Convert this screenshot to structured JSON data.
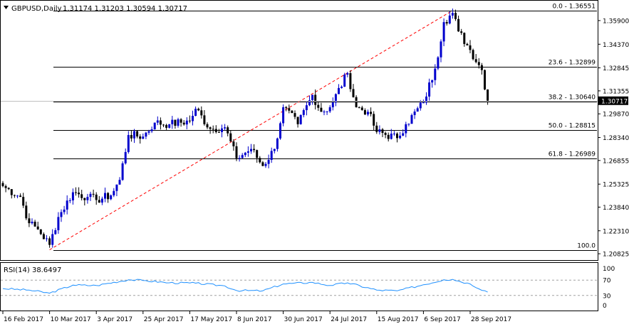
{
  "header": {
    "symbol_label": "GBPUSD,Daily",
    "ohlc": "1.31174 1.31203 1.30594 1.30717",
    "marker_icon": "triangle-down-icon"
  },
  "rsi_panel": {
    "label": "RSI(14) 38.6497",
    "levels": [
      70,
      30
    ],
    "ticks": [
      "100",
      "70",
      "30",
      "0"
    ],
    "line_color": "#1e90ff"
  },
  "colors": {
    "bull_candle": "#0000cd",
    "bear_candle": "#000000",
    "current_price_bg": "#000000",
    "trend_line": "#ff0000"
  },
  "chart_data": {
    "type": "candlestick",
    "symbol": "GBPUSD",
    "timeframe": "Daily",
    "last_price": "1.30717",
    "y_ticks": [
      "1.35900",
      "1.34370",
      "1.32845",
      "1.31355",
      "1.29870",
      "1.28340",
      "1.26855",
      "1.25325",
      "1.23840",
      "1.22310",
      "1.20825"
    ],
    "ylim": [
      1.206,
      1.37
    ],
    "x_ticks": [
      "16 Feb 2017",
      "10 Mar 2017",
      "3 Apr 2017",
      "25 Apr 2017",
      "17 May 2017",
      "8 Jun 2017",
      "30 Jun 2017",
      "24 Jul 2017",
      "15 Aug 2017",
      "6 Sep 2017",
      "28 Sep 2017"
    ],
    "fibonacci": [
      {
        "label": "0.0 - 1.36551",
        "price": 1.36551
      },
      {
        "label": "23.6 - 1.32899",
        "price": 1.32899
      },
      {
        "label": "38.2 - 1.30640",
        "price": 1.3064
      },
      {
        "label": "50.0 - 1.28815",
        "price": 1.28815
      },
      {
        "label": "61.8 - 1.26989",
        "price": 1.26989
      },
      {
        "label": "100.0",
        "price": 1.2108
      }
    ],
    "anchors": [
      {
        "date": "16 Feb 2017",
        "close": 1.252
      },
      {
        "date": "24 Feb 2017",
        "close": 1.245
      },
      {
        "date": "1 Mar 2017",
        "close": 1.228
      },
      {
        "date": "6 Mar 2017",
        "close": 1.224
      },
      {
        "date": "10 Mar 2017",
        "close": 1.214
      },
      {
        "date": "15 Mar 2017",
        "close": 1.232
      },
      {
        "date": "22 Mar 2017",
        "close": 1.248
      },
      {
        "date": "29 Mar 2017",
        "close": 1.245
      },
      {
        "date": "3 Apr 2017",
        "close": 1.243
      },
      {
        "date": "10 Apr 2017",
        "close": 1.246
      },
      {
        "date": "13 Apr 2017",
        "close": 1.256
      },
      {
        "date": "18 Apr 2017",
        "close": 1.285
      },
      {
        "date": "25 Apr 2017",
        "close": 1.284
      },
      {
        "date": "1 May 2017",
        "close": 1.293
      },
      {
        "date": "8 May 2017",
        "close": 1.292
      },
      {
        "date": "17 May 2017",
        "close": 1.294
      },
      {
        "date": "19 May 2017",
        "close": 1.302
      },
      {
        "date": "26 May 2017",
        "close": 1.289
      },
      {
        "date": "2 Jun 2017",
        "close": 1.29
      },
      {
        "date": "8 Jun 2017",
        "close": 1.27
      },
      {
        "date": "15 Jun 2017",
        "close": 1.276
      },
      {
        "date": "21 Jun 2017",
        "close": 1.265
      },
      {
        "date": "27 Jun 2017",
        "close": 1.276
      },
      {
        "date": "30 Jun 2017",
        "close": 1.303
      },
      {
        "date": "7 Jul 2017",
        "close": 1.292
      },
      {
        "date": "14 Jul 2017",
        "close": 1.311
      },
      {
        "date": "19 Jul 2017",
        "close": 1.3
      },
      {
        "date": "24 Jul 2017",
        "close": 1.303
      },
      {
        "date": "1 Aug 2017",
        "close": 1.325
      },
      {
        "date": "4 Aug 2017",
        "close": 1.303
      },
      {
        "date": "10 Aug 2017",
        "close": 1.3
      },
      {
        "date": "15 Aug 2017",
        "close": 1.287
      },
      {
        "date": "24 Aug 2017",
        "close": 1.283
      },
      {
        "date": "29 Aug 2017",
        "close": 1.292
      },
      {
        "date": "6 Sep 2017",
        "close": 1.306
      },
      {
        "date": "12 Sep 2017",
        "close": 1.328
      },
      {
        "date": "15 Sep 2017",
        "close": 1.358
      },
      {
        "date": "20 Sep 2017",
        "close": 1.364
      },
      {
        "date": "22 Sep 2017",
        "close": 1.352
      },
      {
        "date": "28 Sep 2017",
        "close": 1.34
      },
      {
        "date": "4 Oct 2017",
        "close": 1.327
      },
      {
        "date": "6 Oct 2017",
        "close": 1.30717
      }
    ],
    "rsi": {
      "period": 14,
      "last": 38.6497,
      "anchors": [
        {
          "date": "16 Feb 2017",
          "value": 48
        },
        {
          "date": "1 Mar 2017",
          "value": 44
        },
        {
          "date": "10 Mar 2017",
          "value": 36
        },
        {
          "date": "22 Mar 2017",
          "value": 57
        },
        {
          "date": "3 Apr 2017",
          "value": 56
        },
        {
          "date": "18 Apr 2017",
          "value": 71
        },
        {
          "date": "25 Apr 2017",
          "value": 69
        },
        {
          "date": "8 May 2017",
          "value": 63
        },
        {
          "date": "19 May 2017",
          "value": 62
        },
        {
          "date": "2 Jun 2017",
          "value": 55
        },
        {
          "date": "8 Jun 2017",
          "value": 43
        },
        {
          "date": "21 Jun 2017",
          "value": 42
        },
        {
          "date": "30 Jun 2017",
          "value": 60
        },
        {
          "date": "14 Jul 2017",
          "value": 64
        },
        {
          "date": "24 Jul 2017",
          "value": 56
        },
        {
          "date": "1 Aug 2017",
          "value": 63
        },
        {
          "date": "15 Aug 2017",
          "value": 44
        },
        {
          "date": "24 Aug 2017",
          "value": 42
        },
        {
          "date": "6 Sep 2017",
          "value": 58
        },
        {
          "date": "15 Sep 2017",
          "value": 71
        },
        {
          "date": "20 Sep 2017",
          "value": 72
        },
        {
          "date": "28 Sep 2017",
          "value": 60
        },
        {
          "date": "6 Oct 2017",
          "value": 38.6497
        }
      ]
    }
  }
}
